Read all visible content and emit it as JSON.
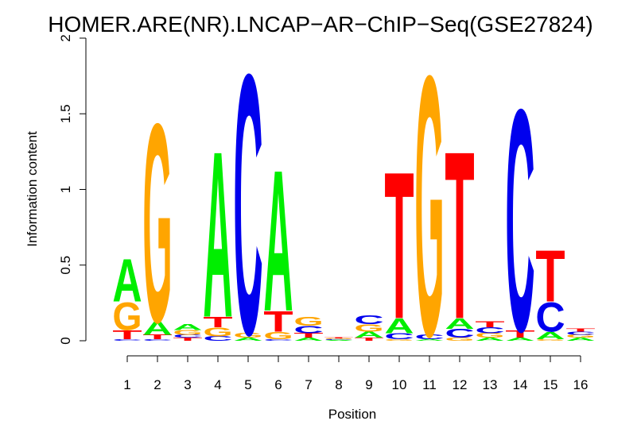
{
  "chart_data": {
    "type": "sequence-logo",
    "title": "HOMER.ARE(NR).LNCAP−AR−ChIP−Seq(GSE27824)",
    "xlabel": "Position",
    "ylabel": "Information content",
    "ylim": [
      0,
      2
    ],
    "yticks": [
      "0",
      "0.5",
      "1",
      "1.5",
      "2"
    ],
    "positions": [
      "1",
      "2",
      "3",
      "4",
      "5",
      "6",
      "7",
      "8",
      "9",
      "10",
      "11",
      "12",
      "13",
      "14",
      "15",
      "16"
    ],
    "colors": {
      "A": "#00ee00",
      "C": "#0000ee",
      "G": "#ffa500",
      "T": "#ff0000"
    },
    "stacks": [
      [
        {
          "l": "C",
          "v": 0.01
        },
        {
          "l": "T",
          "v": 0.06
        },
        {
          "l": "G",
          "v": 0.19
        },
        {
          "l": "A",
          "v": 0.29
        }
      ],
      [
        {
          "l": "C",
          "v": 0.01
        },
        {
          "l": "T",
          "v": 0.03
        },
        {
          "l": "A",
          "v": 0.09
        },
        {
          "l": "G",
          "v": 1.35
        }
      ],
      [
        {
          "l": "T",
          "v": 0.02
        },
        {
          "l": "C",
          "v": 0.02
        },
        {
          "l": "G",
          "v": 0.03
        },
        {
          "l": "A",
          "v": 0.04
        }
      ],
      [
        {
          "l": "C",
          "v": 0.03
        },
        {
          "l": "G",
          "v": 0.06
        },
        {
          "l": "T",
          "v": 0.07
        },
        {
          "l": "A",
          "v": 1.13
        }
      ],
      [
        {
          "l": "A",
          "v": 0.02
        },
        {
          "l": "G",
          "v": 0.03
        },
        {
          "l": "C",
          "v": 1.77
        }
      ],
      [
        {
          "l": "C",
          "v": 0.01
        },
        {
          "l": "G",
          "v": 0.05
        },
        {
          "l": "T",
          "v": 0.14
        },
        {
          "l": "A",
          "v": 0.96
        }
      ],
      [
        {
          "l": "A",
          "v": 0.02
        },
        {
          "l": "T",
          "v": 0.03
        },
        {
          "l": "C",
          "v": 0.05
        },
        {
          "l": "G",
          "v": 0.06
        }
      ],
      [
        {
          "l": "A",
          "v": 0.005
        },
        {
          "l": "C",
          "v": 0.005
        },
        {
          "l": "G",
          "v": 0.005
        },
        {
          "l": "T",
          "v": 0.005
        }
      ],
      [
        {
          "l": "T",
          "v": 0.02
        },
        {
          "l": "A",
          "v": 0.04
        },
        {
          "l": "G",
          "v": 0.05
        },
        {
          "l": "C",
          "v": 0.06
        }
      ],
      [
        {
          "l": "G",
          "v": 0.01
        },
        {
          "l": "C",
          "v": 0.04
        },
        {
          "l": "A",
          "v": 0.1
        },
        {
          "l": "T",
          "v": 1.0
        }
      ],
      [
        {
          "l": "A",
          "v": 0.01
        },
        {
          "l": "C",
          "v": 0.03
        },
        {
          "l": "G",
          "v": 1.77
        }
      ],
      [
        {
          "l": "G",
          "v": 0.02
        },
        {
          "l": "C",
          "v": 0.06
        },
        {
          "l": "A",
          "v": 0.07
        },
        {
          "l": "T",
          "v": 1.14
        }
      ],
      [
        {
          "l": "A",
          "v": 0.02
        },
        {
          "l": "G",
          "v": 0.03
        },
        {
          "l": "C",
          "v": 0.04
        },
        {
          "l": "T",
          "v": 0.04
        }
      ],
      [
        {
          "l": "A",
          "v": 0.02
        },
        {
          "l": "T",
          "v": 0.05
        },
        {
          "l": "C",
          "v": 1.51
        }
      ],
      [
        {
          "l": "G",
          "v": 0.01
        },
        {
          "l": "A",
          "v": 0.05
        },
        {
          "l": "C",
          "v": 0.2
        },
        {
          "l": "T",
          "v": 0.35
        }
      ],
      [
        {
          "l": "A",
          "v": 0.02
        },
        {
          "l": "G",
          "v": 0.02
        },
        {
          "l": "C",
          "v": 0.02
        },
        {
          "l": "T",
          "v": 0.02
        }
      ]
    ]
  }
}
